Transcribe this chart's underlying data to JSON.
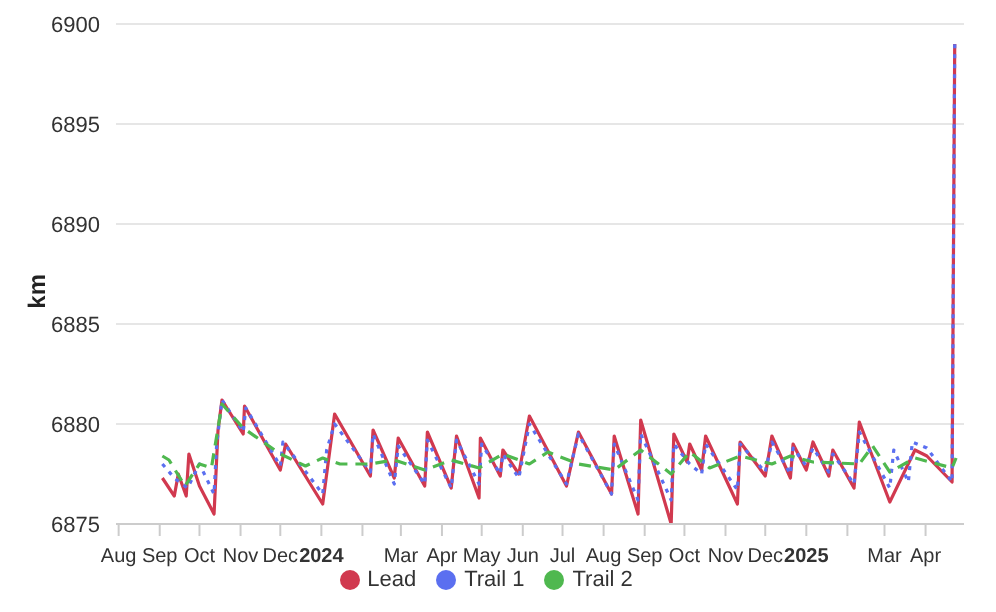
{
  "chart_data": {
    "type": "line",
    "ylabel": "km",
    "xlim": [
      "2023-07-30",
      "2025-04-30"
    ],
    "ylim": [
      6875,
      6900
    ],
    "yticks": [
      6875,
      6880,
      6885,
      6890,
      6895,
      6900
    ],
    "xticks": [
      {
        "value": "2023-08-01",
        "label": "Aug"
      },
      {
        "value": "2023-09-01",
        "label": "Sep"
      },
      {
        "value": "2023-10-01",
        "label": "Oct"
      },
      {
        "value": "2023-11-01",
        "label": "Nov"
      },
      {
        "value": "2023-12-01",
        "label": "Dec"
      },
      {
        "value": "2024-01-01",
        "label": "2024"
      },
      {
        "value": "2024-02-01",
        "label": null
      },
      {
        "value": "2024-03-01",
        "label": "Mar"
      },
      {
        "value": "2024-04-01",
        "label": "Apr"
      },
      {
        "value": "2024-05-01",
        "label": "May"
      },
      {
        "value": "2024-06-01",
        "label": "Jun"
      },
      {
        "value": "2024-07-01",
        "label": "Jul"
      },
      {
        "value": "2024-08-01",
        "label": "Aug"
      },
      {
        "value": "2024-09-01",
        "label": "Sep"
      },
      {
        "value": "2024-10-01",
        "label": "Oct"
      },
      {
        "value": "2024-11-01",
        "label": "Nov"
      },
      {
        "value": "2024-12-01",
        "label": "Dec"
      },
      {
        "value": "2025-01-01",
        "label": "2025"
      },
      {
        "value": "2025-02-01",
        "label": null
      },
      {
        "value": "2025-03-01",
        "label": "Mar"
      },
      {
        "value": "2025-04-01",
        "label": "Apr"
      }
    ],
    "grid": "y",
    "legend": "bottom",
    "marker": "none",
    "series": [
      {
        "name": "Lead",
        "color": "#d1394f",
        "line_style": "solid",
        "x": [
          "2023-09-03",
          "2023-09-12",
          "2023-09-15",
          "2023-09-21",
          "2023-09-23",
          "2023-10-01",
          "2023-10-12",
          "2023-10-15",
          "2023-10-18",
          "2023-11-03",
          "2023-11-04",
          "2023-12-01",
          "2023-12-05",
          "2024-01-02",
          "2024-01-11",
          "2024-02-07",
          "2024-02-09",
          "2024-02-25",
          "2024-02-28",
          "2024-03-19",
          "2024-03-21",
          "2024-04-08",
          "2024-04-12",
          "2024-04-29",
          "2024-04-30",
          "2024-05-15",
          "2024-05-17",
          "2024-05-29",
          "2024-06-06",
          "2024-07-04",
          "2024-07-13",
          "2024-08-07",
          "2024-08-09",
          "2024-08-27",
          "2024-08-29",
          "2024-09-21",
          "2024-09-23",
          "2024-10-03",
          "2024-10-05",
          "2024-10-14",
          "2024-10-17",
          "2024-11-10",
          "2024-11-12",
          "2024-12-01",
          "2024-12-06",
          "2024-12-20",
          "2024-12-22",
          "2025-01-01",
          "2025-01-06",
          "2025-01-18",
          "2025-01-21",
          "2025-02-06",
          "2025-02-10",
          "2025-03-05",
          "2025-03-24",
          "2025-04-02",
          "2025-04-21",
          "2025-04-23"
        ],
        "values": [
          6877.3,
          6876.4,
          6877.5,
          6876.4,
          6878.5,
          6876.9,
          6875.5,
          6879.7,
          6881.2,
          6879.5,
          6880.9,
          6877.7,
          6879.0,
          6876.0,
          6880.5,
          6877.4,
          6879.7,
          6877.3,
          6879.3,
          6876.9,
          6879.6,
          6876.8,
          6879.4,
          6876.3,
          6879.3,
          6877.4,
          6878.7,
          6877.5,
          6880.4,
          6876.9,
          6879.6,
          6876.5,
          6879.4,
          6875.5,
          6880.2,
          6875.0,
          6879.5,
          6878.1,
          6879.0,
          6877.7,
          6879.4,
          6876.0,
          6879.1,
          6877.4,
          6879.4,
          6877.3,
          6879.0,
          6877.7,
          6879.1,
          6877.4,
          6878.7,
          6876.8,
          6880.1,
          6876.1,
          6878.7,
          6878.4,
          6877.1,
          6899.0
        ]
      },
      {
        "name": "Trail 1",
        "color": "#5b6ff0",
        "line_style": "dotted",
        "x": [
          "2023-09-03",
          "2023-09-12",
          "2023-09-22",
          "2023-10-01",
          "2023-10-12",
          "2023-10-14",
          "2023-10-18",
          "2023-11-03",
          "2023-11-05",
          "2023-12-01",
          "2023-12-03",
          "2024-01-02",
          "2024-01-05",
          "2024-01-11",
          "2024-02-07",
          "2024-02-09",
          "2024-02-25",
          "2024-02-28",
          "2024-03-19",
          "2024-03-21",
          "2024-04-08",
          "2024-04-12",
          "2024-04-29",
          "2024-05-01",
          "2024-05-15",
          "2024-05-17",
          "2024-05-29",
          "2024-06-06",
          "2024-07-04",
          "2024-07-13",
          "2024-08-07",
          "2024-08-09",
          "2024-08-27",
          "2024-08-29",
          "2024-09-21",
          "2024-09-23",
          "2024-10-05",
          "2024-10-14",
          "2024-10-17",
          "2024-11-10",
          "2024-11-12",
          "2024-12-01",
          "2024-12-06",
          "2024-12-20",
          "2024-12-22",
          "2025-01-01",
          "2025-01-06",
          "2025-01-18",
          "2025-01-21",
          "2025-02-06",
          "2025-02-10",
          "2025-03-05",
          "2025-03-08",
          "2025-03-19",
          "2025-03-22",
          "2025-04-02",
          "2025-04-21",
          "2025-04-23"
        ],
        "values": [
          6878.0,
          6877.3,
          6876.8,
          6878.0,
          6876.5,
          6879.0,
          6881.2,
          6879.6,
          6880.8,
          6877.9,
          6879.1,
          6876.5,
          6878.7,
          6880.0,
          6877.6,
          6879.5,
          6877.0,
          6878.9,
          6877.0,
          6879.2,
          6876.8,
          6879.2,
          6877.0,
          6879.0,
          6877.5,
          6878.5,
          6877.3,
          6880.0,
          6877.0,
          6879.5,
          6876.5,
          6879.0,
          6876.2,
          6879.5,
          6876.2,
          6879.0,
          6878.0,
          6877.5,
          6879.0,
          6876.7,
          6879.0,
          6877.6,
          6879.1,
          6877.5,
          6878.8,
          6877.9,
          6878.8,
          6877.6,
          6878.5,
          6877.0,
          6879.6,
          6876.8,
          6878.7,
          6877.1,
          6879.1,
          6878.8,
          6877.1,
          6899.0
        ]
      },
      {
        "name": "Trail 2",
        "color": "#4fb84f",
        "line_style": "dashed",
        "x": [
          "2023-09-03",
          "2023-09-08",
          "2023-09-20",
          "2023-10-01",
          "2023-10-10",
          "2023-10-18",
          "2023-11-03",
          "2023-12-01",
          "2023-12-20",
          "2024-01-02",
          "2024-01-15",
          "2024-02-07",
          "2024-02-25",
          "2024-03-19",
          "2024-04-08",
          "2024-04-29",
          "2024-05-17",
          "2024-06-06",
          "2024-06-20",
          "2024-07-13",
          "2024-08-09",
          "2024-08-29",
          "2024-09-21",
          "2024-10-05",
          "2024-10-20",
          "2024-11-12",
          "2024-12-06",
          "2024-12-20",
          "2025-01-06",
          "2025-02-10",
          "2025-02-20",
          "2025-03-05",
          "2025-03-24",
          "2025-04-21",
          "2025-04-24"
        ],
        "values": [
          6878.4,
          6878.2,
          6876.9,
          6878.0,
          6877.8,
          6881.0,
          6879.8,
          6878.5,
          6877.9,
          6878.3,
          6878.0,
          6878.0,
          6878.2,
          6877.7,
          6878.2,
          6877.8,
          6878.5,
          6878.0,
          6878.6,
          6878.0,
          6877.7,
          6878.7,
          6877.5,
          6878.6,
          6877.8,
          6878.4,
          6878.0,
          6878.4,
          6878.1,
          6878.0,
          6878.9,
          6877.6,
          6878.3,
          6877.8,
          6878.3
        ]
      }
    ]
  }
}
